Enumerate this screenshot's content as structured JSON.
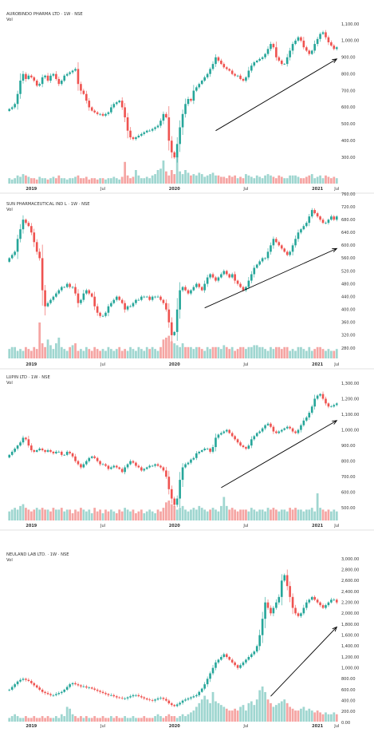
{
  "colors": {
    "up": "#26a69a",
    "down": "#ef5350",
    "vol_up": "#9fd6d0",
    "vol_down": "#f5a5a3",
    "axis_text": "#333333",
    "divider": "#d8d8d8",
    "arrow": "#000000"
  },
  "chart_data": [
    {
      "type": "candlestick",
      "title": "AUROBINDO PHARMA LTD · 1W · NSE",
      "subtitle": "Vol",
      "ylim": [
        200,
        1100
      ],
      "y_ticks": [
        "1,100.00",
        "1,000.00",
        "900.00",
        "800.00",
        "700.00",
        "600.00",
        "500.00",
        "400.00",
        "300.00"
      ],
      "y_tick_values": [
        1100,
        1000,
        900,
        800,
        700,
        600,
        500,
        400,
        300
      ],
      "x_tick_labels": [
        "2019",
        "Jul",
        "2020",
        "Jul",
        "2021",
        "Jul"
      ],
      "x_tick_weeks": [
        8,
        34,
        60,
        86,
        112,
        138
      ],
      "closes": [
        590,
        600,
        620,
        680,
        760,
        800,
        770,
        790,
        780,
        760,
        730,
        740,
        780,
        790,
        760,
        790,
        800,
        770,
        740,
        760,
        790,
        800,
        810,
        820,
        830,
        740,
        700,
        680,
        640,
        600,
        580,
        570,
        560,
        560,
        550,
        560,
        570,
        600,
        620,
        630,
        640,
        600,
        540,
        460,
        420,
        410,
        420,
        430,
        440,
        450,
        460,
        460,
        470,
        480,
        490,
        520,
        560,
        540,
        400,
        330,
        300,
        380,
        480,
        560,
        620,
        650,
        640,
        700,
        720,
        740,
        760,
        780,
        800,
        830,
        860,
        900,
        880,
        860,
        840,
        830,
        820,
        800,
        790,
        790,
        770,
        760,
        780,
        820,
        850,
        870,
        880,
        890,
        900,
        920,
        950,
        980,
        960,
        900,
        880,
        860,
        860,
        900,
        940,
        980,
        1000,
        1020,
        1000,
        960,
        940,
        920,
        940,
        980,
        1010,
        1040,
        1050,
        1020,
        990,
        970,
        950,
        960
      ],
      "volumes": [
        0.2,
        0.15,
        0.2,
        0.3,
        0.25,
        0.35,
        0.3,
        0.25,
        0.2,
        0.2,
        0.15,
        0.25,
        0.2,
        0.2,
        0.15,
        0.2,
        0.25,
        0.2,
        0.3,
        0.2,
        0.2,
        0.15,
        0.2,
        0.2,
        0.25,
        0.3,
        0.2,
        0.2,
        0.25,
        0.15,
        0.2,
        0.2,
        0.15,
        0.2,
        0.2,
        0.15,
        0.2,
        0.2,
        0.25,
        0.2,
        0.15,
        0.25,
        0.8,
        0.3,
        0.2,
        0.25,
        0.5,
        0.3,
        0.2,
        0.2,
        0.25,
        0.2,
        0.3,
        0.35,
        0.5,
        0.55,
        0.85,
        0.45,
        0.3,
        0.5,
        0.35,
        1.0,
        0.45,
        0.35,
        0.5,
        0.4,
        0.3,
        0.35,
        0.3,
        0.4,
        0.35,
        0.25,
        0.3,
        0.35,
        0.4,
        0.3,
        0.3,
        0.25,
        0.25,
        0.2,
        0.3,
        0.25,
        0.3,
        0.2,
        0.25,
        0.2,
        0.35,
        0.3,
        0.25,
        0.2,
        0.3,
        0.25,
        0.2,
        0.3,
        0.35,
        0.3,
        0.25,
        0.2,
        0.3,
        0.25,
        0.2,
        0.2,
        0.3,
        0.3,
        0.3,
        0.25,
        0.2,
        0.2,
        0.25,
        0.3,
        0.35,
        0.2,
        0.25,
        0.3,
        0.2,
        0.3,
        0.25,
        0.2,
        0.25,
        0.2
      ],
      "arrow": {
        "from": [
          75,
          460
        ],
        "to": [
          126,
          890
        ]
      }
    },
    {
      "type": "candlestick",
      "title": "SUN PHARMACEUTICAL IND L · 1W · NSE",
      "subtitle": "Vol",
      "ylim": [
        270,
        760
      ],
      "y_ticks": [
        "760.00",
        "720.00",
        "680.00",
        "640.00",
        "600.00",
        "560.00",
        "520.00",
        "480.00",
        "440.00",
        "400.00",
        "360.00",
        "320.00",
        "280.00"
      ],
      "y_tick_values": [
        760,
        720,
        680,
        640,
        600,
        560,
        520,
        480,
        440,
        400,
        360,
        320,
        280
      ],
      "x_tick_labels": [
        "2019",
        "Jul",
        "2020",
        "Jul",
        "2021",
        "Jul"
      ],
      "x_tick_weeks": [
        8,
        34,
        60,
        86,
        112,
        138
      ],
      "closes": [
        560,
        570,
        580,
        620,
        650,
        680,
        670,
        660,
        640,
        610,
        580,
        560,
        460,
        410,
        420,
        430,
        440,
        450,
        460,
        470,
        470,
        480,
        470,
        470,
        450,
        420,
        430,
        450,
        460,
        450,
        440,
        410,
        390,
        380,
        380,
        390,
        410,
        420,
        430,
        440,
        430,
        420,
        400,
        410,
        410,
        420,
        430,
        430,
        440,
        440,
        440,
        430,
        440,
        440,
        440,
        430,
        420,
        400,
        360,
        320,
        330,
        400,
        460,
        470,
        460,
        450,
        460,
        470,
        480,
        470,
        460,
        480,
        500,
        510,
        500,
        490,
        500,
        510,
        520,
        510,
        500,
        510,
        490,
        480,
        470,
        460,
        470,
        490,
        510,
        530,
        540,
        550,
        560,
        560,
        580,
        600,
        620,
        610,
        600,
        590,
        580,
        570,
        580,
        600,
        620,
        640,
        650,
        660,
        670,
        690,
        710,
        700,
        690,
        680,
        670,
        670,
        680,
        690,
        680,
        690
      ],
      "volumes": [
        0.25,
        0.3,
        0.3,
        0.2,
        0.25,
        0.2,
        0.3,
        0.25,
        0.2,
        0.3,
        0.25,
        0.95,
        0.4,
        0.3,
        0.5,
        0.35,
        0.25,
        0.4,
        0.55,
        0.3,
        0.25,
        0.2,
        0.3,
        0.35,
        0.4,
        0.2,
        0.25,
        0.2,
        0.3,
        0.25,
        0.2,
        0.3,
        0.25,
        0.2,
        0.25,
        0.2,
        0.3,
        0.25,
        0.2,
        0.25,
        0.3,
        0.2,
        0.25,
        0.2,
        0.3,
        0.25,
        0.2,
        0.3,
        0.25,
        0.2,
        0.3,
        0.25,
        0.3,
        0.25,
        0.2,
        0.3,
        0.5,
        0.55,
        0.6,
        0.45,
        0.4,
        0.35,
        0.3,
        0.4,
        0.3,
        0.3,
        0.3,
        0.25,
        0.3,
        0.3,
        0.25,
        0.2,
        0.3,
        0.25,
        0.3,
        0.3,
        0.3,
        0.25,
        0.35,
        0.3,
        0.25,
        0.3,
        0.2,
        0.25,
        0.3,
        0.3,
        0.25,
        0.3,
        0.3,
        0.35,
        0.35,
        0.3,
        0.3,
        0.25,
        0.2,
        0.3,
        0.25,
        0.3,
        0.3,
        0.25,
        0.3,
        0.3,
        0.2,
        0.25,
        0.2,
        0.3,
        0.3,
        0.25,
        0.2,
        0.3,
        0.2,
        0.25,
        0.3,
        0.3,
        0.25,
        0.2,
        0.25,
        0.2,
        0.2,
        0.25
      ],
      "arrow": {
        "from": [
          71,
          405
        ],
        "to": [
          126,
          590
        ]
      }
    },
    {
      "type": "candlestick",
      "title": "LUPIN LTD · 1W · NSE",
      "subtitle": "Vol",
      "ylim": [
        440,
        1310
      ],
      "y_ticks": [
        "1,300.00",
        "1,200.00",
        "1,100.00",
        "1,000.00",
        "900.00",
        "800.00",
        "700.00",
        "600.00",
        "500.00"
      ],
      "y_tick_values": [
        1300,
        1200,
        1100,
        1000,
        900,
        800,
        700,
        600,
        500
      ],
      "x_tick_labels": [
        "2019",
        "Jul",
        "2020",
        "Jul",
        "2021",
        "Jul"
      ],
      "x_tick_weeks": [
        8,
        34,
        60,
        86,
        112,
        138
      ],
      "closes": [
        840,
        860,
        880,
        900,
        920,
        950,
        940,
        900,
        870,
        860,
        870,
        880,
        870,
        860,
        870,
        860,
        850,
        860,
        860,
        840,
        840,
        860,
        850,
        830,
        800,
        780,
        760,
        780,
        800,
        820,
        830,
        820,
        800,
        780,
        780,
        770,
        750,
        760,
        770,
        760,
        750,
        730,
        760,
        780,
        800,
        790,
        770,
        760,
        740,
        750,
        760,
        770,
        770,
        780,
        770,
        760,
        740,
        700,
        620,
        560,
        520,
        560,
        680,
        760,
        780,
        790,
        810,
        820,
        850,
        860,
        870,
        880,
        880,
        860,
        890,
        950,
        970,
        980,
        990,
        1000,
        980,
        960,
        940,
        920,
        900,
        890,
        880,
        900,
        940,
        960,
        980,
        990,
        1010,
        1030,
        1040,
        1020,
        990,
        980,
        990,
        1000,
        1010,
        1020,
        1010,
        990,
        980,
        1000,
        1030,
        1060,
        1080,
        1110,
        1150,
        1200,
        1220,
        1230,
        1200,
        1170,
        1150,
        1150,
        1160,
        1170
      ],
      "volumes": [
        0.25,
        0.3,
        0.35,
        0.3,
        0.4,
        0.45,
        0.35,
        0.3,
        0.25,
        0.3,
        0.35,
        0.3,
        0.35,
        0.3,
        0.3,
        0.25,
        0.35,
        0.3,
        0.3,
        0.35,
        0.25,
        0.3,
        0.3,
        0.2,
        0.3,
        0.25,
        0.35,
        0.3,
        0.25,
        0.3,
        0.2,
        0.35,
        0.25,
        0.3,
        0.2,
        0.3,
        0.25,
        0.3,
        0.25,
        0.2,
        0.3,
        0.25,
        0.35,
        0.3,
        0.25,
        0.3,
        0.2,
        0.25,
        0.3,
        0.2,
        0.25,
        0.3,
        0.25,
        0.2,
        0.3,
        0.25,
        0.35,
        0.5,
        0.55,
        0.45,
        0.4,
        0.3,
        0.35,
        0.4,
        0.3,
        0.25,
        0.3,
        0.35,
        0.3,
        0.4,
        0.35,
        0.3,
        0.25,
        0.3,
        0.35,
        0.3,
        0.25,
        0.4,
        0.65,
        0.4,
        0.3,
        0.35,
        0.3,
        0.25,
        0.3,
        0.3,
        0.3,
        0.25,
        0.35,
        0.3,
        0.25,
        0.3,
        0.3,
        0.25,
        0.35,
        0.3,
        0.35,
        0.3,
        0.25,
        0.3,
        0.3,
        0.25,
        0.35,
        0.3,
        0.35,
        0.3,
        0.3,
        0.25,
        0.3,
        0.3,
        0.35,
        0.25,
        0.75,
        0.35,
        0.3,
        0.25,
        0.3,
        0.25,
        0.3,
        0.25
      ],
      "arrow": {
        "from": [
          77,
          630
        ],
        "to": [
          126,
          1060
        ]
      }
    },
    {
      "type": "candlestick",
      "title": "NEULAND LAB LTD. · 1W · NSE",
      "subtitle": "Vol",
      "ylim": [
        0,
        3000
      ],
      "y_ticks": [
        "3,000.00",
        "2,800.00",
        "2,600.00",
        "2,400.00",
        "2,200.00",
        "2,000.00",
        "1,800.00",
        "1,600.00",
        "1,400.00",
        "1,200.00",
        "1,000.00",
        "800.00",
        "600.00",
        "400.00",
        "200.00",
        "0.00"
      ],
      "y_tick_values": [
        3000,
        2800,
        2600,
        2400,
        2200,
        2000,
        1800,
        1600,
        1400,
        1200,
        1000,
        800,
        600,
        400,
        200,
        0
      ],
      "x_tick_labels": [
        "2019",
        "Jul",
        "2020",
        "Jul",
        "2021",
        "Jul"
      ],
      "x_tick_weeks": [
        8,
        34,
        60,
        86,
        112,
        138
      ],
      "closes": [
        600,
        650,
        700,
        750,
        780,
        800,
        780,
        760,
        720,
        680,
        640,
        600,
        560,
        540,
        520,
        500,
        500,
        520,
        540,
        560,
        600,
        650,
        700,
        720,
        700,
        680,
        660,
        660,
        640,
        640,
        620,
        600,
        580,
        560,
        540,
        520,
        500,
        500,
        480,
        460,
        450,
        440,
        440,
        460,
        480,
        500,
        500,
        480,
        460,
        440,
        420,
        410,
        400,
        420,
        440,
        450,
        430,
        400,
        350,
        320,
        300,
        330,
        360,
        400,
        420,
        440,
        460,
        480,
        500,
        560,
        620,
        700,
        800,
        900,
        1000,
        1100,
        1150,
        1200,
        1250,
        1200,
        1150,
        1100,
        1050,
        1000,
        1050,
        1100,
        1150,
        1200,
        1250,
        1300,
        1400,
        1600,
        1900,
        2200,
        2100,
        2000,
        2100,
        2200,
        2300,
        2600,
        2700,
        2500,
        2300,
        2100,
        2000,
        1950,
        2000,
        2100,
        2200,
        2250,
        2300,
        2250,
        2200,
        2150,
        2100,
        2150,
        2200,
        2250,
        2250,
        2200
      ],
      "volumes": [
        0.1,
        0.15,
        0.2,
        0.15,
        0.1,
        0.1,
        0.15,
        0.1,
        0.1,
        0.15,
        0.1,
        0.1,
        0.15,
        0.1,
        0.15,
        0.1,
        0.1,
        0.15,
        0.1,
        0.2,
        0.15,
        0.4,
        0.35,
        0.2,
        0.15,
        0.1,
        0.15,
        0.1,
        0.15,
        0.1,
        0.1,
        0.15,
        0.1,
        0.1,
        0.15,
        0.1,
        0.1,
        0.15,
        0.1,
        0.15,
        0.1,
        0.1,
        0.15,
        0.1,
        0.1,
        0.15,
        0.1,
        0.1,
        0.1,
        0.15,
        0.1,
        0.1,
        0.1,
        0.15,
        0.2,
        0.15,
        0.1,
        0.15,
        0.2,
        0.15,
        0.15,
        0.1,
        0.15,
        0.2,
        0.15,
        0.2,
        0.25,
        0.3,
        0.4,
        0.5,
        0.6,
        0.7,
        0.6,
        0.5,
        0.8,
        0.55,
        0.5,
        0.45,
        0.4,
        0.35,
        0.3,
        0.3,
        0.35,
        0.3,
        0.4,
        0.45,
        0.3,
        0.5,
        0.55,
        0.45,
        0.6,
        0.85,
        0.95,
        0.8,
        0.6,
        0.5,
        0.4,
        0.45,
        0.5,
        0.55,
        0.6,
        0.5,
        0.4,
        0.35,
        0.3,
        0.3,
        0.35,
        0.4,
        0.3,
        0.35,
        0.3,
        0.25,
        0.3,
        0.25,
        0.2,
        0.25,
        0.2,
        0.2,
        0.25,
        0.2
      ],
      "arrow": {
        "from": [
          95,
          480
        ],
        "to": [
          126,
          1750
        ]
      }
    }
  ]
}
